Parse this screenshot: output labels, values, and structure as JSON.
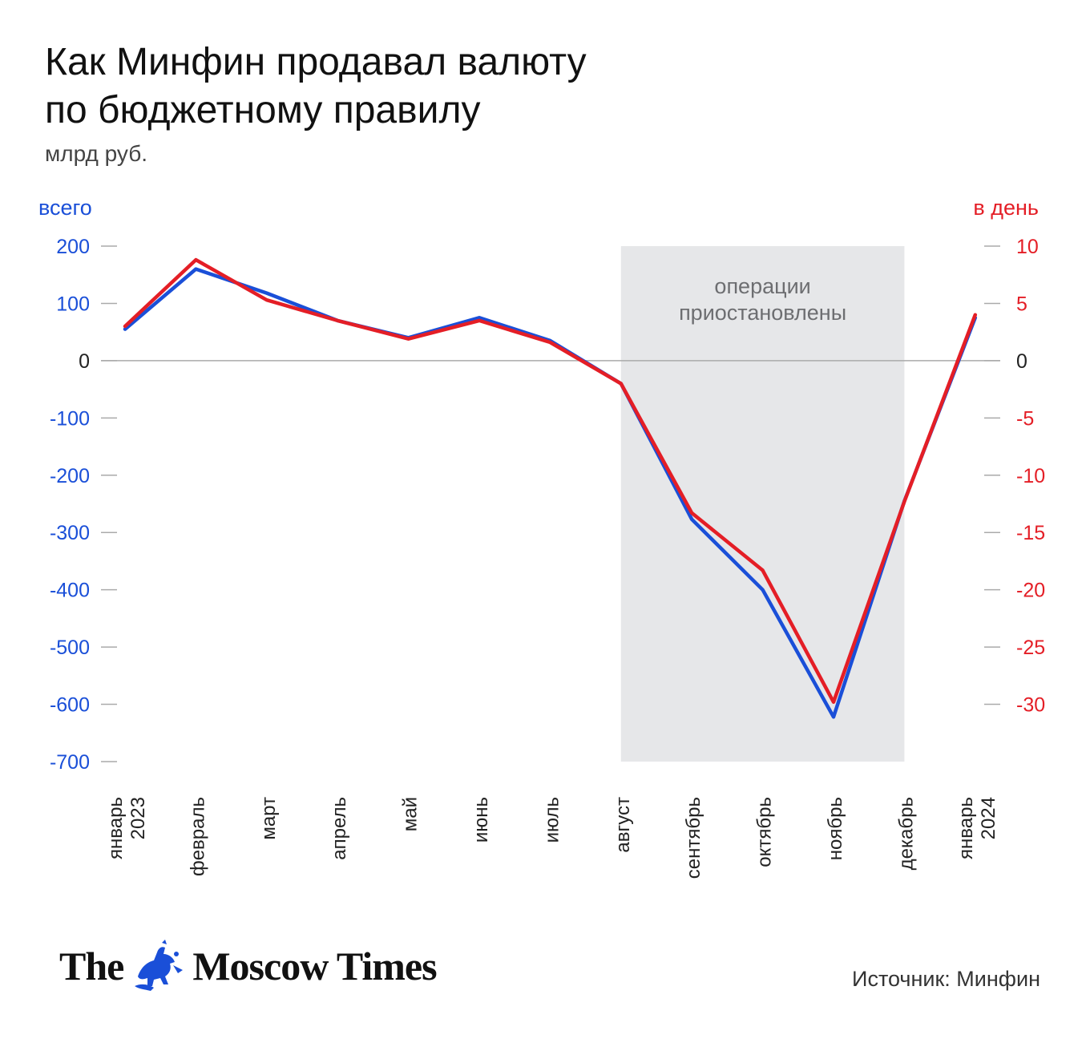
{
  "title_line1": "Как Минфин продавал валюту",
  "title_line2": "по бюджетному правилу",
  "subtitle": "млрд руб.",
  "logo_text_left": "The",
  "logo_text_right": "Moscow Times",
  "source": "Источник: Минфин",
  "colors": {
    "total": "#1a4fd8",
    "daily": "#e41e26",
    "shade": "#e6e7e9",
    "zero_line": "#aaaaaa",
    "tick": "#aaaaaa"
  },
  "chart_data": {
    "type": "line",
    "categories": [
      "январь 2023",
      "февраль",
      "март",
      "апрель",
      "май",
      "июнь",
      "июль",
      "август",
      "сентябрь",
      "октябрь",
      "ноябрь",
      "декабрь",
      "январь 2024"
    ],
    "y_left": {
      "label": "всего",
      "ticks": [
        200,
        100,
        0,
        -100,
        -200,
        -300,
        -400,
        -500,
        -600,
        -700
      ],
      "ylim": [
        -700,
        200
      ]
    },
    "y_right": {
      "label": "в день",
      "ticks": [
        10,
        5,
        0,
        -5,
        -10,
        -15,
        -20,
        -25,
        -30
      ],
      "ylim": [
        -35,
        10
      ]
    },
    "series": [
      {
        "axis": "left",
        "color": "#1a4fd8",
        "values": [
          55,
          160,
          118,
          70,
          40,
          75,
          35,
          -40,
          -277,
          -400,
          -622,
          -245,
          75
        ]
      },
      {
        "axis": "right",
        "color": "#e41e26",
        "values": [
          3.0,
          8.8,
          5.3,
          3.5,
          1.9,
          3.5,
          1.6,
          -2.0,
          -13.3,
          -18.3,
          -29.8,
          -12.3,
          4.0
        ]
      }
    ],
    "annotation": {
      "label": "операции приостановлены",
      "from": "август",
      "to": "декабрь"
    },
    "grid": false
  }
}
